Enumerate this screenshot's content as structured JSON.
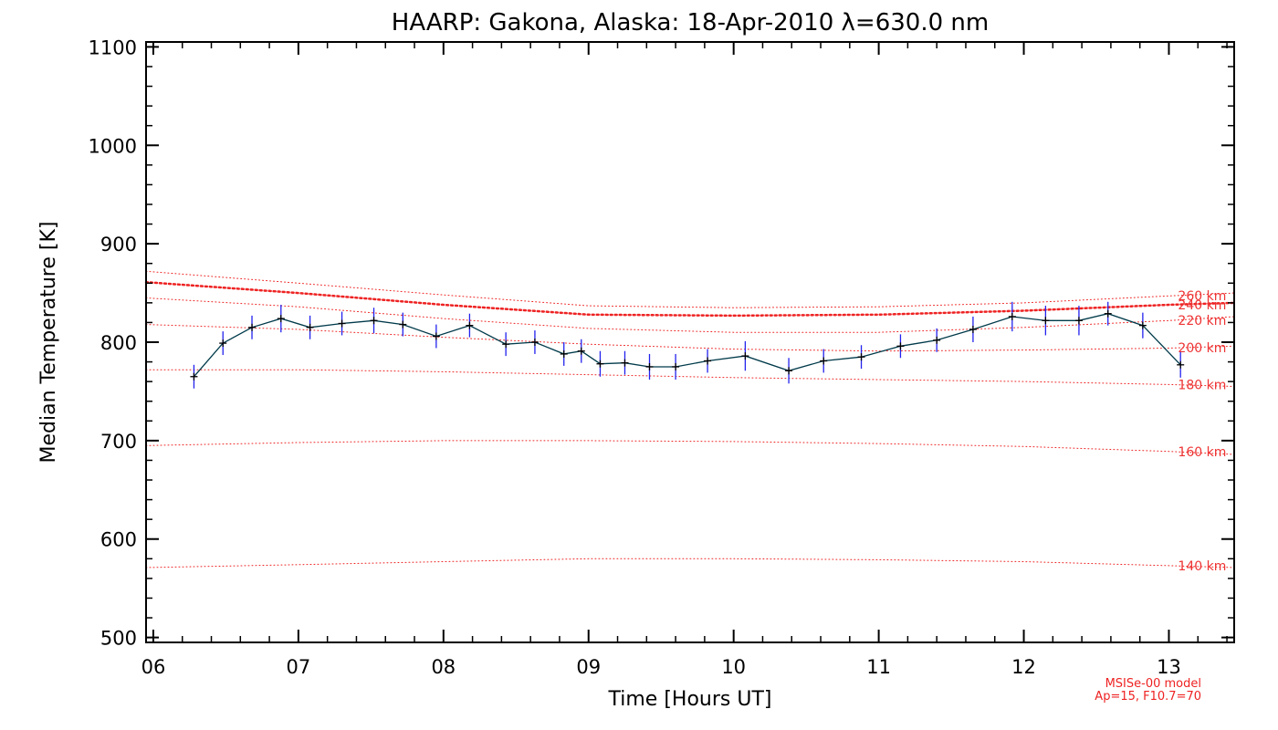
{
  "chart_data": {
    "type": "line",
    "title": "HAARP: Gakona,  Alaska: 18-Apr-2010 λ=630.0 nm",
    "xlabel": "Time [Hours UT]",
    "ylabel": "Median Temperature [K]",
    "xlim": [
      5.95,
      13.45
    ],
    "ylim": [
      495,
      1105
    ],
    "x_ticks": [
      6,
      7,
      8,
      9,
      10,
      11,
      12,
      13
    ],
    "x_tick_labels": [
      "06",
      "07",
      "08",
      "09",
      "10",
      "11",
      "12",
      "13"
    ],
    "y_ticks": [
      500,
      600,
      700,
      800,
      900,
      1000,
      1100
    ],
    "y_tick_labels": [
      "500",
      "600",
      "700",
      "800",
      "900",
      "1000",
      "1100"
    ],
    "grid": false,
    "series": [
      {
        "style": "line-with-markers-and-errorbars",
        "color": "#003a4a",
        "errorbar_color": "#2222ee",
        "x": [
          6.28,
          6.48,
          6.68,
          6.88,
          7.08,
          7.3,
          7.52,
          7.72,
          7.95,
          8.18,
          8.43,
          8.63,
          8.83,
          8.95,
          9.08,
          9.25,
          9.42,
          9.6,
          9.82,
          10.08,
          10.38,
          10.62,
          10.88,
          11.15,
          11.4,
          11.65,
          11.92,
          12.15,
          12.38,
          12.58,
          12.82,
          13.08
        ],
        "y": [
          765,
          799,
          815,
          824,
          815,
          819,
          822,
          818,
          806,
          817,
          798,
          800,
          788,
          791,
          778,
          779,
          775,
          775,
          781,
          786,
          771,
          781,
          785,
          796,
          802,
          813,
          826,
          822,
          822,
          829,
          817,
          777
        ],
        "err": [
          12,
          12,
          12,
          14,
          12,
          12,
          13,
          12,
          12,
          12,
          12,
          12,
          12,
          12,
          13,
          12,
          13,
          13,
          12,
          15,
          13,
          12,
          12,
          12,
          12,
          13,
          15,
          15,
          15,
          12,
          13,
          13
        ]
      }
    ],
    "model_curves": [
      {
        "name": "140 km",
        "x": [
          5.95,
          7.0,
          8.0,
          9.0,
          10.0,
          11.0,
          12.0,
          13.0,
          13.45
        ],
        "y": [
          571,
          574,
          577,
          580,
          580,
          579,
          577,
          573,
          571
        ]
      },
      {
        "name": "160 km",
        "x": [
          5.95,
          7.0,
          8.0,
          9.0,
          10.0,
          11.0,
          12.0,
          13.0,
          13.45
        ],
        "y": [
          695,
          698,
          700,
          700,
          699,
          697,
          694,
          689,
          686
        ]
      },
      {
        "name": "180 km",
        "x": [
          5.95,
          7.0,
          8.0,
          9.0,
          10.0,
          11.0,
          12.0,
          13.0,
          13.45
        ],
        "y": [
          772,
          772,
          770,
          767,
          764,
          762,
          760,
          757,
          755
        ]
      },
      {
        "name": "200 km",
        "x": [
          5.95,
          7.0,
          8.0,
          9.0,
          10.0,
          11.0,
          12.0,
          13.0,
          13.45
        ],
        "y": [
          818,
          813,
          805,
          798,
          793,
          791,
          792,
          794,
          796
        ]
      },
      {
        "name": "220 km",
        "x": [
          5.95,
          7.0,
          8.0,
          9.0,
          10.0,
          11.0,
          12.0,
          13.0,
          13.45
        ],
        "y": [
          845,
          836,
          824,
          814,
          810,
          810,
          815,
          822,
          826
        ]
      },
      {
        "name": "240 km",
        "x": [
          5.95,
          7.0,
          8.0,
          9.0,
          10.0,
          11.0,
          12.0,
          13.0,
          13.45
        ],
        "y": [
          861,
          850,
          838,
          828,
          827,
          828,
          832,
          838,
          840
        ]
      },
      {
        "name": "260 km",
        "x": [
          5.95,
          7.0,
          8.0,
          9.0,
          10.0,
          11.0,
          12.0,
          13.0,
          13.45
        ],
        "y": [
          872,
          860,
          848,
          837,
          835,
          836,
          840,
          847,
          850
        ]
      }
    ],
    "emphasized_model_curve": "240 km",
    "model_color": "#ee2222"
  },
  "model_note": {
    "line1": "MSISe-00 model",
    "line2": "Ap=15, F10.7=70"
  }
}
